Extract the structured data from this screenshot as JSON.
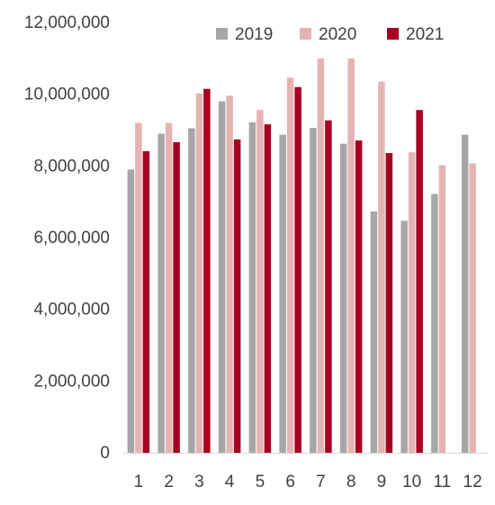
{
  "chart_data": {
    "type": "bar",
    "title": "",
    "xlabel": "",
    "ylabel": "",
    "categories": [
      "1",
      "2",
      "3",
      "4",
      "5",
      "6",
      "7",
      "8",
      "9",
      "10",
      "11",
      "12"
    ],
    "series": [
      {
        "name": "2019",
        "color": "#a6a6a6",
        "values": [
          7900000,
          8900000,
          9050000,
          9800000,
          9220000,
          8870000,
          9060000,
          8620000,
          6730000,
          6470000,
          7220000,
          8870000
        ]
      },
      {
        "name": "2020",
        "color": "#e6b3b3",
        "values": [
          9200000,
          9200000,
          10020000,
          9960000,
          9560000,
          10460000,
          11000000,
          11000000,
          10350000,
          8380000,
          8020000,
          8070000
        ]
      },
      {
        "name": "2021",
        "color": "#a50021",
        "values": [
          8410000,
          8660000,
          10150000,
          8740000,
          9160000,
          10200000,
          9270000,
          8710000,
          8360000,
          9560000,
          null,
          null
        ]
      }
    ],
    "ylim": [
      0,
      12000000
    ],
    "yticks": [
      "0",
      "2,000,000",
      "4,000,000",
      "6,000,000",
      "8,000,000",
      "10,000,000",
      "12,000,000"
    ],
    "ytick_values": [
      0,
      2000000,
      4000000,
      6000000,
      8000000,
      10000000,
      12000000
    ],
    "grid": false,
    "legend_position": "top-right"
  }
}
